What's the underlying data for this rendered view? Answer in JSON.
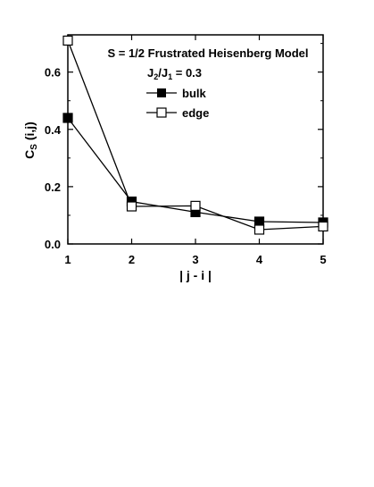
{
  "chart_data": {
    "type": "line",
    "title_lines": [
      "S = 1/2 Frustrated Heisenberg Model"
    ],
    "param": {
      "lhs_main1": "J",
      "lhs_sub1": "2",
      "slash": "/",
      "lhs_main2": "J",
      "lhs_sub2": "1",
      "rhs": " = 0.3"
    },
    "xlabel": "| j - i |",
    "ylabel": {
      "main": "C",
      "sub": "S",
      "rest": " (i,j)"
    },
    "x": [
      1,
      2,
      3,
      4,
      5
    ],
    "xlim": [
      1,
      5
    ],
    "ylim": [
      0,
      0.73
    ],
    "xticks": [
      "1",
      "2",
      "3",
      "4",
      "5"
    ],
    "yticks": [
      {
        "value": 0.0,
        "label": "0.0"
      },
      {
        "value": 0.2,
        "label": "0.2"
      },
      {
        "value": 0.4,
        "label": "0.4"
      },
      {
        "value": 0.6,
        "label": "0.6"
      }
    ],
    "series": [
      {
        "name": "bulk",
        "marker": "filled-square",
        "values": [
          0.44,
          0.148,
          0.111,
          0.078,
          0.075
        ]
      },
      {
        "name": "edge",
        "marker": "open-square",
        "values": [
          0.71,
          0.131,
          0.133,
          0.05,
          0.061
        ]
      }
    ],
    "legend_position": "top-right",
    "grid": false,
    "colors": {
      "line": "#000000",
      "background": "#ffffff"
    }
  }
}
